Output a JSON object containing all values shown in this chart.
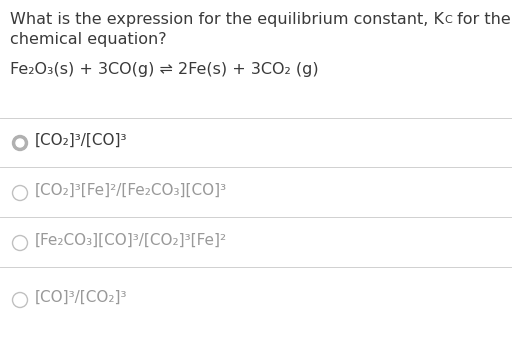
{
  "background_color": "#ffffff",
  "text_color": "#3a3a3a",
  "light_text_color": "#999999",
  "separator_color": "#d0d0d0",
  "selected_radio_fill": "#b0b0b0",
  "unselected_radio_edge": "#c0c0c0",
  "font_size_title": 11.5,
  "font_size_equation": 11.5,
  "font_size_options": 11.0,
  "title_line1_before_K": "What is the expression for the equilibrium constant, K",
  "title_Csub": "C",
  "title_line1_after_K": " for the following",
  "title_line2": "chemical equation?",
  "equation": "Fe₂O₃(s) + 3CO(g) ⇌ 2Fe(s) + 3CO₂ (g)",
  "options": [
    {
      "text": "[CO₂]³/[CO]³",
      "selected": true
    },
    {
      "text": "[CO₂]³[Fe]²/[Fe₂CO₃][CO]³",
      "selected": false
    },
    {
      "text": "[Fe₂CO₃][CO]³/[CO₂]³[Fe]²",
      "selected": false
    },
    {
      "text": "[CO]³/[CO₂]³",
      "selected": false
    }
  ]
}
